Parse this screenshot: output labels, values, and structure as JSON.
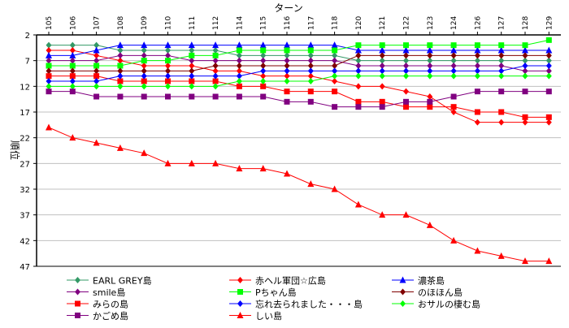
{
  "chart_data": {
    "type": "line",
    "title": "ターン",
    "xlabel": "ターン",
    "ylabel": "順位",
    "x_axis_position": "top",
    "y_inverted": true,
    "ylim": [
      2,
      47
    ],
    "yticks": [
      2,
      7,
      12,
      17,
      22,
      27,
      32,
      37,
      42,
      47
    ],
    "grid": true,
    "legend_position": "bottom",
    "categories": [
      "105",
      "106",
      "107",
      "108",
      "109",
      "110",
      "111",
      "112",
      "114",
      "115",
      "116",
      "117",
      "118",
      "120",
      "121",
      "122",
      "123",
      "124",
      "126",
      "127",
      "128",
      "129"
    ],
    "series": [
      {
        "name": "EARL GREY島",
        "color": "#339966",
        "marker": "diamond",
        "values": [
          4,
          4,
          4,
          5,
          5,
          5,
          5,
          5,
          6,
          6,
          6,
          6,
          6,
          7,
          7,
          7,
          7,
          7,
          7,
          7,
          7,
          7
        ]
      },
      {
        "name": "赤ヘル軍団☆広島",
        "color": "#ff0000",
        "marker": "diamond",
        "values": [
          5,
          5,
          6,
          7,
          8,
          8,
          8,
          9,
          9,
          10,
          10,
          10,
          11,
          12,
          12,
          13,
          14,
          17,
          19,
          19,
          19,
          19
        ]
      },
      {
        "name": "濃茶島",
        "color": "#0000ff",
        "marker": "triangle",
        "values": [
          6,
          6,
          5,
          4,
          4,
          4,
          4,
          4,
          4,
          4,
          4,
          4,
          4,
          5,
          5,
          5,
          5,
          5,
          5,
          5,
          5,
          5
        ]
      },
      {
        "name": "smile島",
        "color": "#800080",
        "marker": "diamond",
        "values": [
          7,
          7,
          7,
          6,
          6,
          6,
          7,
          7,
          7,
          7,
          7,
          7,
          7,
          8,
          8,
          8,
          8,
          8,
          8,
          8,
          9,
          9
        ]
      },
      {
        "name": "Pちゃん島",
        "color": "#00ff00",
        "marker": "square",
        "values": [
          8,
          8,
          8,
          8,
          7,
          7,
          6,
          6,
          5,
          5,
          5,
          5,
          5,
          4,
          4,
          4,
          4,
          4,
          4,
          4,
          4,
          3
        ]
      },
      {
        "name": "のほほん島",
        "color": "#800000",
        "marker": "diamond",
        "values": [
          9,
          9,
          9,
          9,
          9,
          9,
          9,
          8,
          8,
          8,
          8,
          8,
          8,
          6,
          6,
          6,
          6,
          6,
          6,
          6,
          6,
          6
        ]
      },
      {
        "name": "みらの島",
        "color": "#ff0000",
        "marker": "square",
        "values": [
          10,
          10,
          10,
          11,
          11,
          11,
          11,
          11,
          12,
          12,
          13,
          13,
          13,
          15,
          15,
          16,
          16,
          16,
          17,
          17,
          18,
          18
        ]
      },
      {
        "name": "忘れ去られました・・・島",
        "color": "#0000ff",
        "marker": "diamond",
        "values": [
          11,
          11,
          11,
          10,
          10,
          10,
          10,
          10,
          10,
          9,
          9,
          9,
          9,
          9,
          9,
          9,
          9,
          9,
          9,
          9,
          8,
          8
        ]
      },
      {
        "name": "おサルの棲む島",
        "color": "#00ff00",
        "marker": "diamond",
        "values": [
          12,
          12,
          12,
          12,
          12,
          12,
          12,
          12,
          11,
          11,
          11,
          11,
          10,
          10,
          10,
          10,
          10,
          10,
          10,
          10,
          10,
          10
        ]
      },
      {
        "name": "かごめ島",
        "color": "#800080",
        "marker": "square",
        "values": [
          13,
          13,
          14,
          14,
          14,
          14,
          14,
          14,
          14,
          14,
          15,
          15,
          16,
          16,
          16,
          15,
          15,
          14,
          13,
          13,
          13,
          13
        ]
      },
      {
        "name": "しい島",
        "color": "#ff0000",
        "marker": "triangle",
        "values": [
          20,
          22,
          23,
          24,
          25,
          27,
          27,
          27,
          28,
          28,
          29,
          31,
          32,
          35,
          37,
          37,
          39,
          42,
          44,
          45,
          46,
          46
        ]
      }
    ]
  }
}
